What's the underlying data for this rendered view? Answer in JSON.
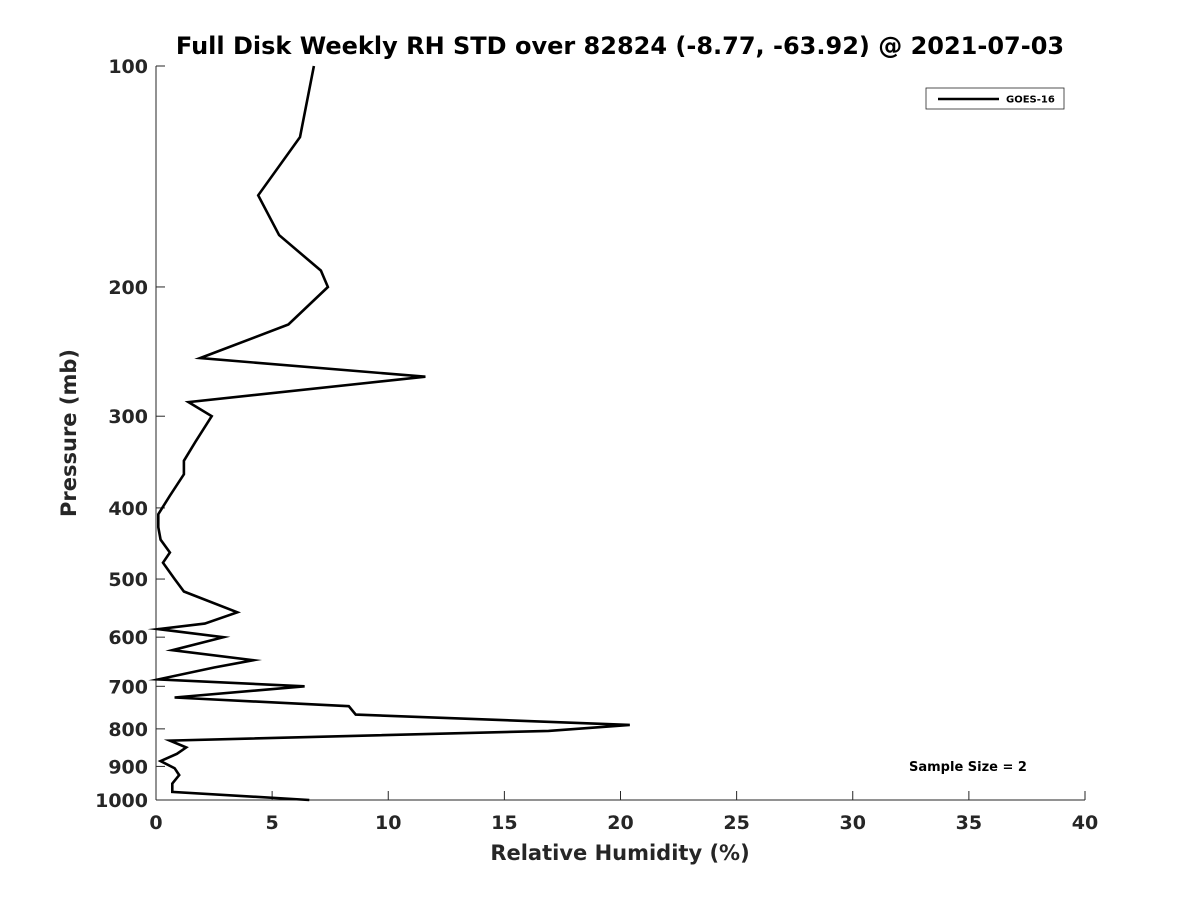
{
  "chart_data": {
    "type": "line",
    "title": "Full Disk Weekly RH STD over 82824 (-8.77, -63.92) @ 2021-07-03",
    "xlabel": "Relative Humidity (%)",
    "ylabel": "Pressure (mb)",
    "xlim": [
      0,
      40
    ],
    "ylim": [
      100,
      1000
    ],
    "y_scale": "log",
    "y_reversed": true,
    "grid": false,
    "legend_position": "top-right",
    "x_ticks": [
      "0",
      "5",
      "10",
      "15",
      "20",
      "25",
      "30",
      "35",
      "40"
    ],
    "y_ticks": [
      "100",
      "200",
      "300",
      "400",
      "500",
      "600",
      "700",
      "800",
      "900",
      "1000"
    ],
    "annotation": "Sample Size = 2",
    "series": [
      {
        "name": "GOES-16",
        "color": "#000000",
        "points": [
          [
            6.8,
            100
          ],
          [
            6.2,
            125
          ],
          [
            4.4,
            150
          ],
          [
            5.3,
            170
          ],
          [
            7.1,
            190
          ],
          [
            7.4,
            200
          ],
          [
            5.7,
            225
          ],
          [
            1.9,
            250
          ],
          [
            11.6,
            265
          ],
          [
            1.4,
            287
          ],
          [
            2.4,
            300
          ],
          [
            1.7,
            325
          ],
          [
            1.2,
            345
          ],
          [
            1.2,
            360
          ],
          [
            0.6,
            385
          ],
          [
            0.1,
            408
          ],
          [
            0.1,
            425
          ],
          [
            0.2,
            442
          ],
          [
            0.6,
            460
          ],
          [
            0.3,
            475
          ],
          [
            0.8,
            500
          ],
          [
            1.2,
            520
          ],
          [
            3.5,
            555
          ],
          [
            2.1,
            575
          ],
          [
            0.1,
            585
          ],
          [
            2.9,
            600
          ],
          [
            0.7,
            625
          ],
          [
            4.2,
            645
          ],
          [
            2.5,
            660
          ],
          [
            0.1,
            685
          ],
          [
            6.4,
            700
          ],
          [
            0.8,
            725
          ],
          [
            8.3,
            745
          ],
          [
            8.6,
            765
          ],
          [
            20.4,
            790
          ],
          [
            16.9,
            805
          ],
          [
            0.6,
            830
          ],
          [
            1.3,
            848
          ],
          [
            0.9,
            865
          ],
          [
            0.2,
            885
          ],
          [
            0.8,
            905
          ],
          [
            1.0,
            925
          ],
          [
            0.7,
            950
          ],
          [
            0.7,
            975
          ],
          [
            6.6,
            1000
          ]
        ]
      }
    ]
  }
}
